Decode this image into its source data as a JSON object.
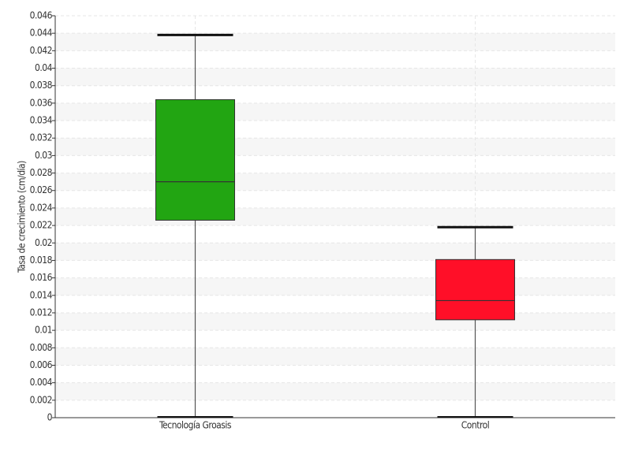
{
  "chart_data": {
    "type": "box",
    "y_label": "Tasa de crecimiento (cm/día)",
    "categories": [
      "Tecnología Groasis",
      "Control"
    ],
    "boxes": [
      {
        "min": 0,
        "q1": 0.0226,
        "median": 0.027,
        "q3": 0.0364,
        "max": 0.0438,
        "color": "#22a512"
      },
      {
        "min": 0,
        "q1": 0.0112,
        "median": 0.0134,
        "q3": 0.0181,
        "max": 0.0218,
        "color": "#ff0f28"
      }
    ],
    "ylim": [
      0,
      0.046
    ],
    "yticks": [
      0,
      0.002,
      0.004,
      0.006,
      0.008,
      0.01,
      0.012,
      0.014,
      0.016,
      0.018,
      0.02,
      0.022,
      0.024,
      0.026,
      0.028,
      0.03,
      0.032,
      0.034,
      0.036,
      0.038,
      0.04,
      0.042,
      0.044,
      0.046
    ],
    "grid": true
  }
}
